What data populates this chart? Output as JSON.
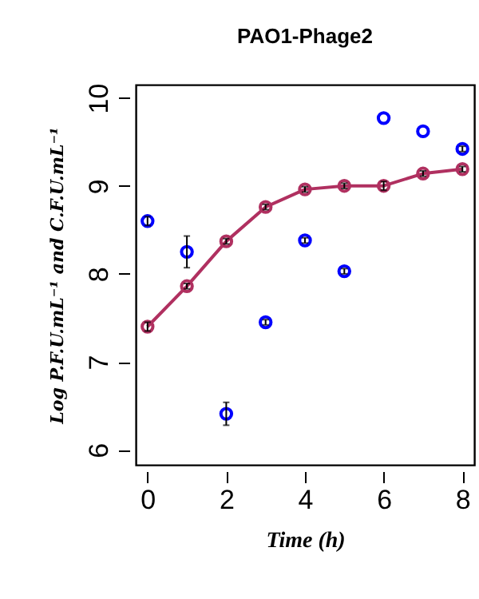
{
  "chart_data": {
    "type": "line",
    "title": "PAO1-Phage2",
    "xlabel": "Time (h)",
    "ylabel": "Log P.F.U.mL⁻¹ and C.F.U.mL⁻¹",
    "x": [
      0,
      1,
      2,
      3,
      4,
      5,
      6,
      7,
      8
    ],
    "series": [
      {
        "type": "line",
        "color": "#b03060",
        "values": [
          7.4,
          7.86,
          8.37,
          8.76,
          8.96,
          9.0,
          9.0,
          9.14,
          9.19
        ],
        "errors": [
          0.05,
          0.03,
          0.03,
          0.03,
          0.03,
          0.03,
          0.05,
          0.03,
          0.03
        ]
      },
      {
        "type": "scatter",
        "color": "#0000ff",
        "values": [
          8.6,
          8.25,
          6.41,
          7.45,
          8.38,
          8.03,
          9.77,
          9.62,
          9.42
        ],
        "errors": [
          0.05,
          0.18,
          0.13,
          0.03,
          0.03,
          0.03,
          null,
          null,
          0.03
        ]
      }
    ],
    "xlim": [
      -0.3,
      8.3
    ],
    "ylim": [
      5.83,
      10.15
    ],
    "xticks": [
      0,
      2,
      4,
      6,
      8
    ],
    "yticks": [
      6,
      7,
      8,
      9,
      10
    ],
    "grid": false,
    "marker": "circle",
    "line_style": "solid"
  }
}
